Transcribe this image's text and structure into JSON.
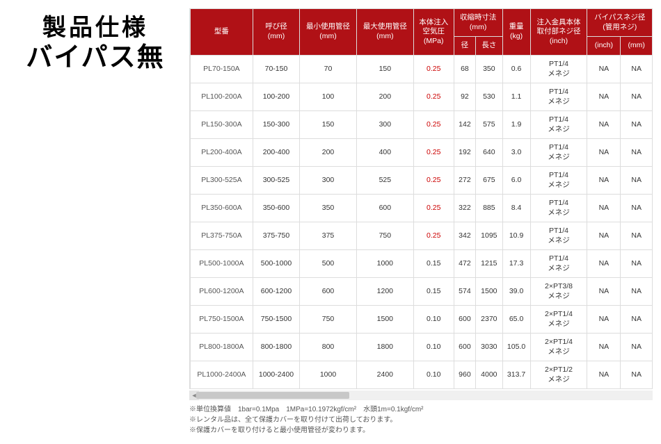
{
  "sideTitle": {
    "line1": "製品仕様",
    "line2": "バイパス無"
  },
  "headers": {
    "model": "型番",
    "nominal": "呼び径\n(mm)",
    "minPipe": "最小使用管径\n(mm)",
    "maxPipe": "最大使用管径\n(mm)",
    "airPressure": "本体注入\n空気圧\n(MPa)",
    "storedDim": "収縮時寸法\n(mm)",
    "diam": "径",
    "length": "長さ",
    "weight": "重量\n(kg)",
    "fitting": "注入金具本体\n取付部ネジ径\n(inch)",
    "bypass": "バイパスネジ径\n(管用ネジ)",
    "bypassInch": "(inch)",
    "bypassMm": "(mm)"
  },
  "rows": [
    {
      "model": "PL70-150A",
      "nominal": "70-150",
      "min": "70",
      "max": "150",
      "mpa": "0.25",
      "d": "68",
      "l": "350",
      "w": "0.6",
      "fit": "PT1/4\nメネジ",
      "bi": "NA",
      "bm": "NA",
      "red": true
    },
    {
      "model": "PL100-200A",
      "nominal": "100-200",
      "min": "100",
      "max": "200",
      "mpa": "0.25",
      "d": "92",
      "l": "530",
      "w": "1.1",
      "fit": "PT1/4\nメネジ",
      "bi": "NA",
      "bm": "NA",
      "red": true
    },
    {
      "model": "PL150-300A",
      "nominal": "150-300",
      "min": "150",
      "max": "300",
      "mpa": "0.25",
      "d": "142",
      "l": "575",
      "w": "1.9",
      "fit": "PT1/4\nメネジ",
      "bi": "NA",
      "bm": "NA",
      "red": true
    },
    {
      "model": "PL200-400A",
      "nominal": "200-400",
      "min": "200",
      "max": "400",
      "mpa": "0.25",
      "d": "192",
      "l": "640",
      "w": "3.0",
      "fit": "PT1/4\nメネジ",
      "bi": "NA",
      "bm": "NA",
      "red": true
    },
    {
      "model": "PL300-525A",
      "nominal": "300-525",
      "min": "300",
      "max": "525",
      "mpa": "0.25",
      "d": "272",
      "l": "675",
      "w": "6.0",
      "fit": "PT1/4\nメネジ",
      "bi": "NA",
      "bm": "NA",
      "red": true
    },
    {
      "model": "PL350-600A",
      "nominal": "350-600",
      "min": "350",
      "max": "600",
      "mpa": "0.25",
      "d": "322",
      "l": "885",
      "w": "8.4",
      "fit": "PT1/4\nメネジ",
      "bi": "NA",
      "bm": "NA",
      "red": true
    },
    {
      "model": "PL375-750A",
      "nominal": "375-750",
      "min": "375",
      "max": "750",
      "mpa": "0.25",
      "d": "342",
      "l": "1095",
      "w": "10.9",
      "fit": "PT1/4\nメネジ",
      "bi": "NA",
      "bm": "NA",
      "red": true
    },
    {
      "model": "PL500-1000A",
      "nominal": "500-1000",
      "min": "500",
      "max": "1000",
      "mpa": "0.15",
      "d": "472",
      "l": "1215",
      "w": "17.3",
      "fit": "PT1/4\nメネジ",
      "bi": "NA",
      "bm": "NA",
      "red": false
    },
    {
      "model": "PL600-1200A",
      "nominal": "600-1200",
      "min": "600",
      "max": "1200",
      "mpa": "0.15",
      "d": "574",
      "l": "1500",
      "w": "39.0",
      "fit": "2×PT3/8\nメネジ",
      "bi": "NA",
      "bm": "NA",
      "red": false
    },
    {
      "model": "PL750-1500A",
      "nominal": "750-1500",
      "min": "750",
      "max": "1500",
      "mpa": "0.10",
      "d": "600",
      "l": "2370",
      "w": "65.0",
      "fit": "2×PT1/4\nメネジ",
      "bi": "NA",
      "bm": "NA",
      "red": false
    },
    {
      "model": "PL800-1800A",
      "nominal": "800-1800",
      "min": "800",
      "max": "1800",
      "mpa": "0.10",
      "d": "600",
      "l": "3030",
      "w": "105.0",
      "fit": "2×PT1/4\nメネジ",
      "bi": "NA",
      "bm": "NA",
      "red": false
    },
    {
      "model": "PL1000-2400A",
      "nominal": "1000-2400",
      "min": "1000",
      "max": "2400",
      "mpa": "0.10",
      "d": "960",
      "l": "4000",
      "w": "313.7",
      "fit": "2×PT1/2\nメネジ",
      "bi": "NA",
      "bm": "NA",
      "red": false
    }
  ],
  "notes": [
    "※単位換算値　1bar=0.1Mpa　1MPa=10.1972kgf/cm²　水頭1m=0.1kgf/cm²",
    "※レンタル品は、全て保護カバーを取り付けて出荷しております。",
    "※保護カバーを取り付けると最小使用管径が変わります。"
  ]
}
